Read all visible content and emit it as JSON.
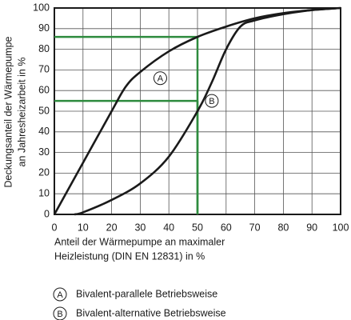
{
  "chart_data": {
    "type": "line",
    "ylabel": [
      "Deckungsanteil der Wärmepumpe",
      "an Jahresheizarbeit in %"
    ],
    "xlabel": [
      "Anteil der Wärmepumpe an maximaler",
      "Heizleistung (DIN EN 12831) in %"
    ],
    "xlim": [
      0,
      100
    ],
    "ylim": [
      0,
      100
    ],
    "xticks": [
      0,
      10,
      20,
      30,
      40,
      50,
      60,
      70,
      80,
      90,
      100
    ],
    "yticks": [
      0,
      10,
      20,
      30,
      40,
      50,
      60,
      70,
      80,
      90,
      100
    ],
    "grid": true,
    "series": [
      {
        "name": "A",
        "color": "#1a1a1a",
        "description": "Bivalent-parallele Betriebsweise",
        "label_x": 37,
        "label_y": 66,
        "x": [
          0,
          10,
          20,
          25,
          30,
          40,
          50,
          60,
          70,
          80,
          90,
          100
        ],
        "values": [
          0,
          25,
          50,
          62,
          69,
          79,
          86,
          91,
          95,
          97.5,
          99,
          100
        ]
      },
      {
        "name": "B",
        "color": "#1a1a1a",
        "description": "Bivalent-alternative Betriebsweise",
        "label_x": 55,
        "label_y": 55,
        "x": [
          7,
          10,
          20,
          30,
          40,
          50,
          55,
          60,
          65,
          70,
          80,
          90,
          100
        ],
        "values": [
          0,
          1,
          7,
          15,
          28,
          50,
          64,
          80,
          91,
          94,
          97,
          99,
          100
        ]
      }
    ],
    "reference_color": "#2e8b3e",
    "reference_points": [
      {
        "x": 50,
        "y": 86
      },
      {
        "x": 50,
        "y": 55
      }
    ]
  }
}
